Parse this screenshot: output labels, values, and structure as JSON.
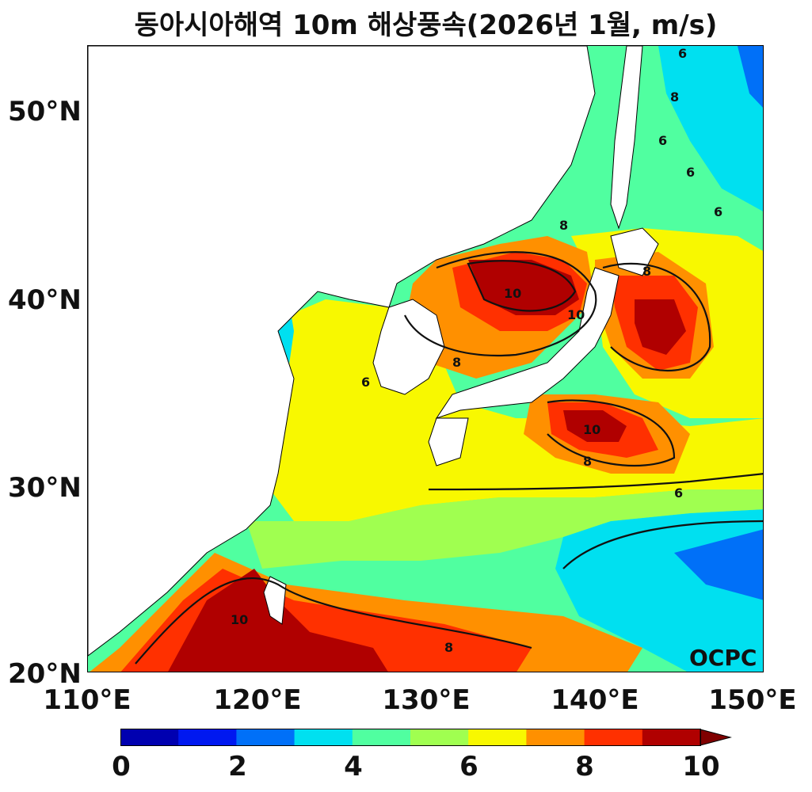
{
  "title": "동아시아해역 10m 해상풍속(2026년 1월, m/s)",
  "watermark": "OCPC",
  "axes": {
    "lat_ticks": [
      "50°N",
      "40°N",
      "30°N",
      "20°N"
    ],
    "lon_ticks": [
      "110°E",
      "120°E",
      "130°E",
      "140°E",
      "150°E"
    ],
    "lat_range": [
      20,
      53.5
    ],
    "lon_range": [
      110,
      150
    ]
  },
  "colorbar": {
    "labels": [
      "0",
      "2",
      "4",
      "6",
      "8",
      "10"
    ],
    "colors": [
      "#0000b0",
      "#0018f0",
      "#0070f8",
      "#00e0f0",
      "#50ffa0",
      "#a0ff50",
      "#f8f800",
      "#ff9000",
      "#ff3000",
      "#b00000"
    ],
    "extend_color": "#800000"
  },
  "contour_labels": [
    "6",
    "8",
    "10",
    "8",
    "10",
    "10",
    "8",
    "8",
    "6",
    "10",
    "8",
    "6",
    "6",
    "6",
    "6",
    "8"
  ],
  "colors": {
    "land": "#ffffff",
    "coast": "#000000",
    "contour": "#111111"
  }
}
